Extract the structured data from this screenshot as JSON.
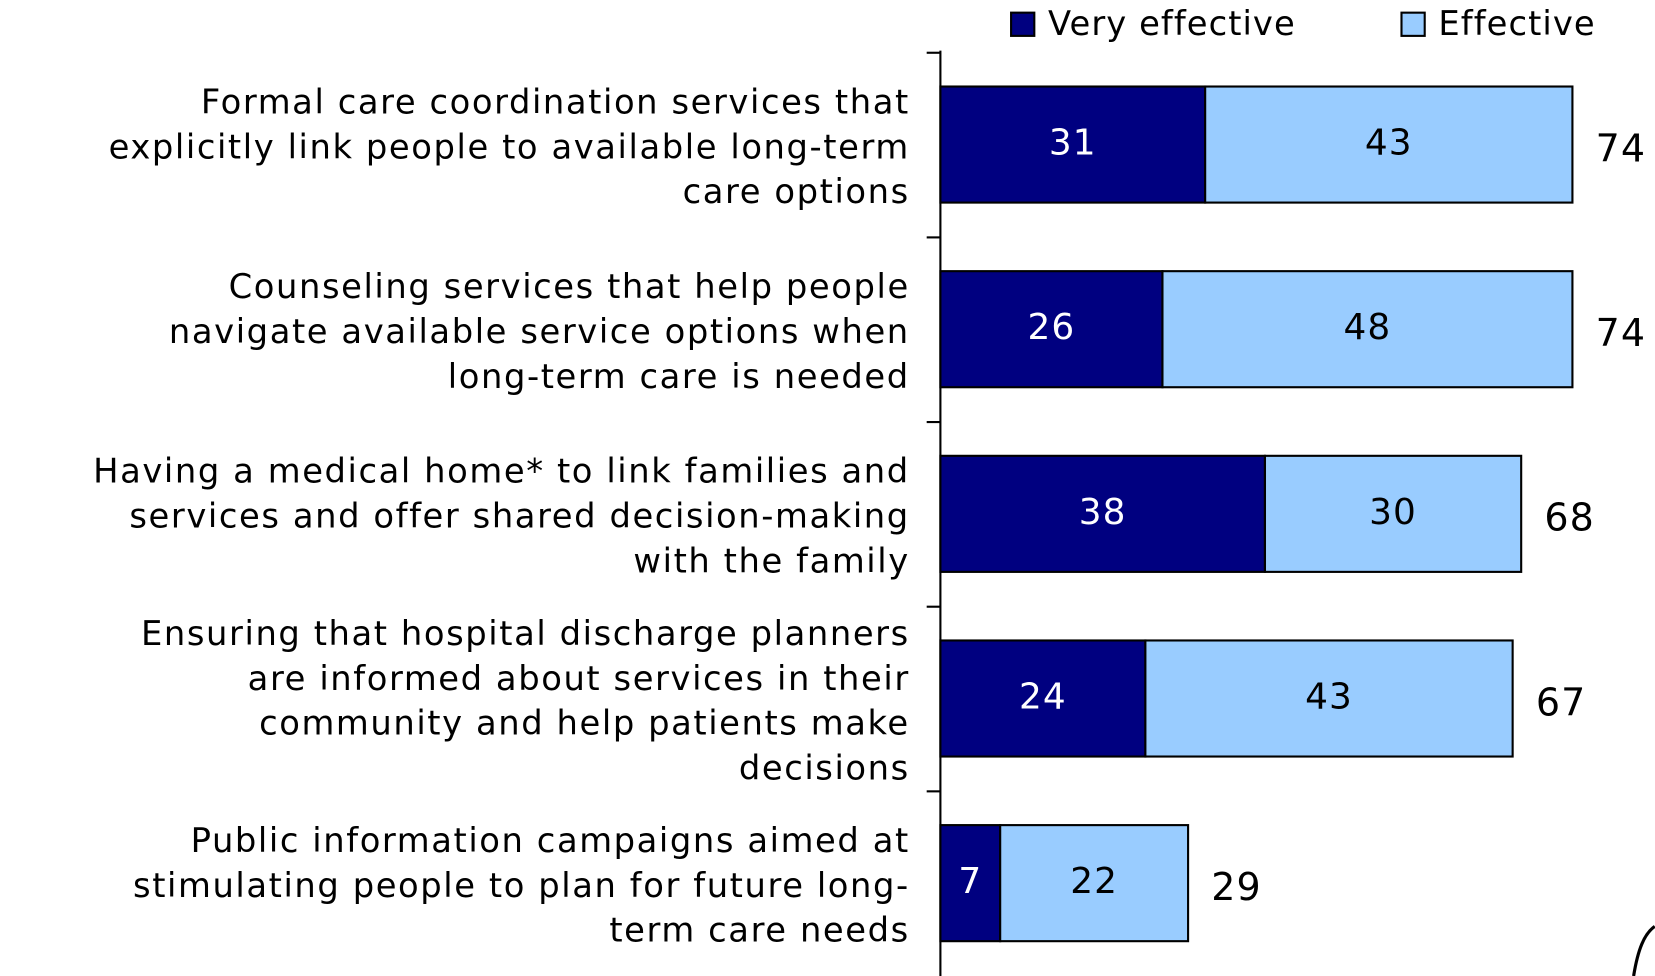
{
  "chart_data": {
    "type": "stacked-bar-horizontal",
    "categories": [
      [
        "Formal care coordination services that",
        "explicitly link people to available long-term",
        "care options"
      ],
      [
        "Counseling services that help people",
        "navigate available service options when",
        "long-term care is needed"
      ],
      [
        "Having a medical home* to link families and",
        "services and offer shared decision-making",
        "with the family"
      ],
      [
        "Ensuring that hospital discharge planners",
        "are informed about services in their",
        "community and help patients make",
        "decisions"
      ],
      [
        "Public information campaigns aimed at",
        "stimulating people to plan for future long-",
        "term care needs"
      ]
    ],
    "series": [
      {
        "name": "Very effective",
        "color": "#000080",
        "label_color": "#ffffff",
        "values": [
          31,
          26,
          38,
          24,
          7
        ]
      },
      {
        "name": "Effective",
        "color": "#99ccff",
        "label_color": "#000000",
        "values": [
          43,
          48,
          30,
          43,
          22
        ]
      }
    ],
    "totals": [
      74,
      74,
      68,
      67,
      29
    ],
    "legend": "top-right"
  }
}
